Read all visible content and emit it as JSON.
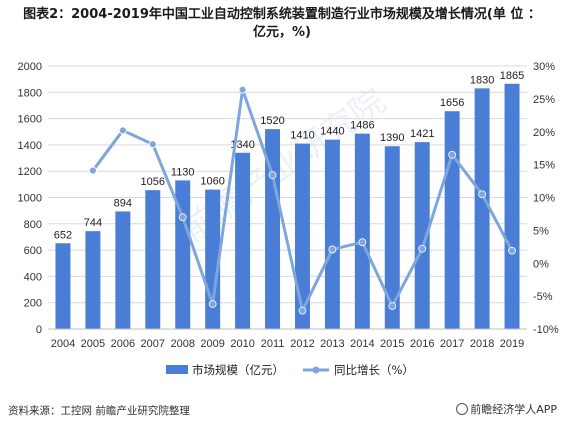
{
  "header": {
    "title_line1": "图表2：2004-2019年中国工业自动控制系统装置制造行业市场规模及增长情况(单 位 ：",
    "title_line2": "亿元，%)"
  },
  "footer": {
    "source": "资料来源：工控网 前瞻产业研究院整理",
    "brand": "前瞻经济学人APP"
  },
  "watermark": "前瞻产业研究院",
  "colors": {
    "bar": "#4a7ed6",
    "line": "#7ea6dd",
    "grid": "#d9d9d9"
  },
  "chart_data": {
    "type": "bar",
    "categories": [
      "2004",
      "2005",
      "2006",
      "2007",
      "2008",
      "2009",
      "2010",
      "2011",
      "2012",
      "2013",
      "2014",
      "2015",
      "2016",
      "2017",
      "2018",
      "2019"
    ],
    "series": [
      {
        "name": "市场规模（亿元）",
        "type": "bar",
        "axis": "left",
        "values": [
          652,
          744,
          894,
          1056,
          1130,
          1060,
          1340,
          1520,
          1410,
          1440,
          1486,
          1390,
          1421,
          1656,
          1830,
          1865
        ]
      },
      {
        "name": "同比增长（%）",
        "type": "line",
        "axis": "right",
        "values": [
          null,
          14.1,
          20.2,
          18.1,
          7.0,
          -6.2,
          26.4,
          13.4,
          -7.2,
          2.1,
          3.2,
          -6.5,
          2.2,
          16.5,
          10.5,
          1.9
        ]
      }
    ],
    "ylim_left": [
      0,
      2000
    ],
    "yticks_left": [
      0,
      200,
      400,
      600,
      800,
      1000,
      1200,
      1400,
      1600,
      1800,
      2000
    ],
    "ylim_right": [
      -10,
      30
    ],
    "yticks_right_labels": [
      "-10%",
      "-5%",
      "0%",
      "5%",
      "10%",
      "15%",
      "20%",
      "25%",
      "30%"
    ],
    "grid": true,
    "legend_position": "bottom"
  }
}
